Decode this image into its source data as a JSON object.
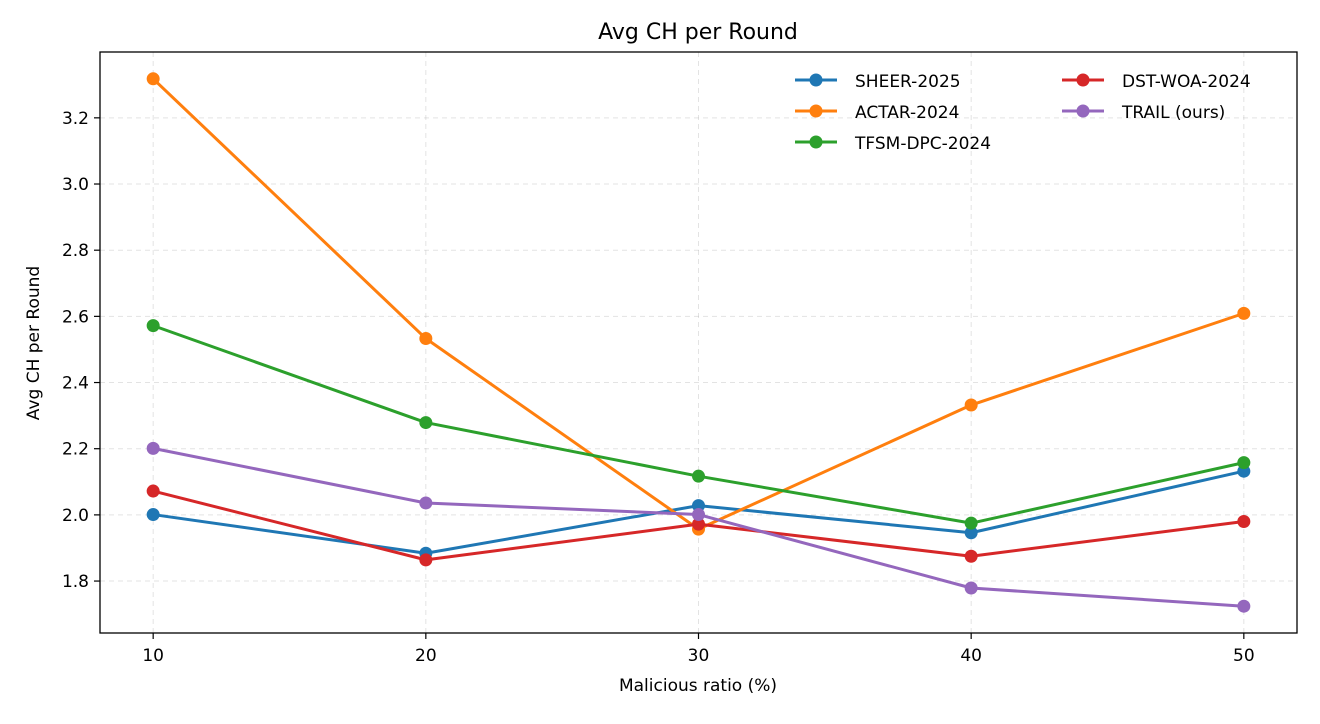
{
  "chart_data": {
    "type": "line",
    "title": "Avg CH per Round",
    "xlabel": "Malicious ratio (%)",
    "ylabel": "Avg CH per Round",
    "x": [
      10,
      20,
      30,
      40,
      50
    ],
    "xlim": [
      8.05,
      51.95
    ],
    "ylim": [
      1.643,
      3.399
    ],
    "yticks": [
      1.8,
      2.0,
      2.2,
      2.4,
      2.6,
      2.8,
      3.0,
      3.2
    ],
    "grid": true,
    "legend_position": "top-right",
    "legend_columns": 2,
    "series": [
      {
        "name": "SHEER-2025",
        "color": "#1f77b4",
        "values": [
          2.001,
          1.884,
          2.028,
          1.946,
          2.132
        ]
      },
      {
        "name": "ACTAR-2024",
        "color": "#ff7f0e",
        "values": [
          3.318,
          2.533,
          1.957,
          2.332,
          2.609
        ]
      },
      {
        "name": "TFSM-DPC-2024",
        "color": "#2ca02c",
        "values": [
          2.572,
          2.279,
          2.117,
          1.975,
          2.158
        ]
      },
      {
        "name": "DST-WOA-2024",
        "color": "#d62728",
        "values": [
          2.072,
          1.864,
          1.972,
          1.875,
          1.98
        ]
      },
      {
        "name": "TRAIL (ours)",
        "color": "#9467bd",
        "values": [
          2.201,
          2.036,
          2.001,
          1.779,
          1.724
        ]
      }
    ]
  }
}
